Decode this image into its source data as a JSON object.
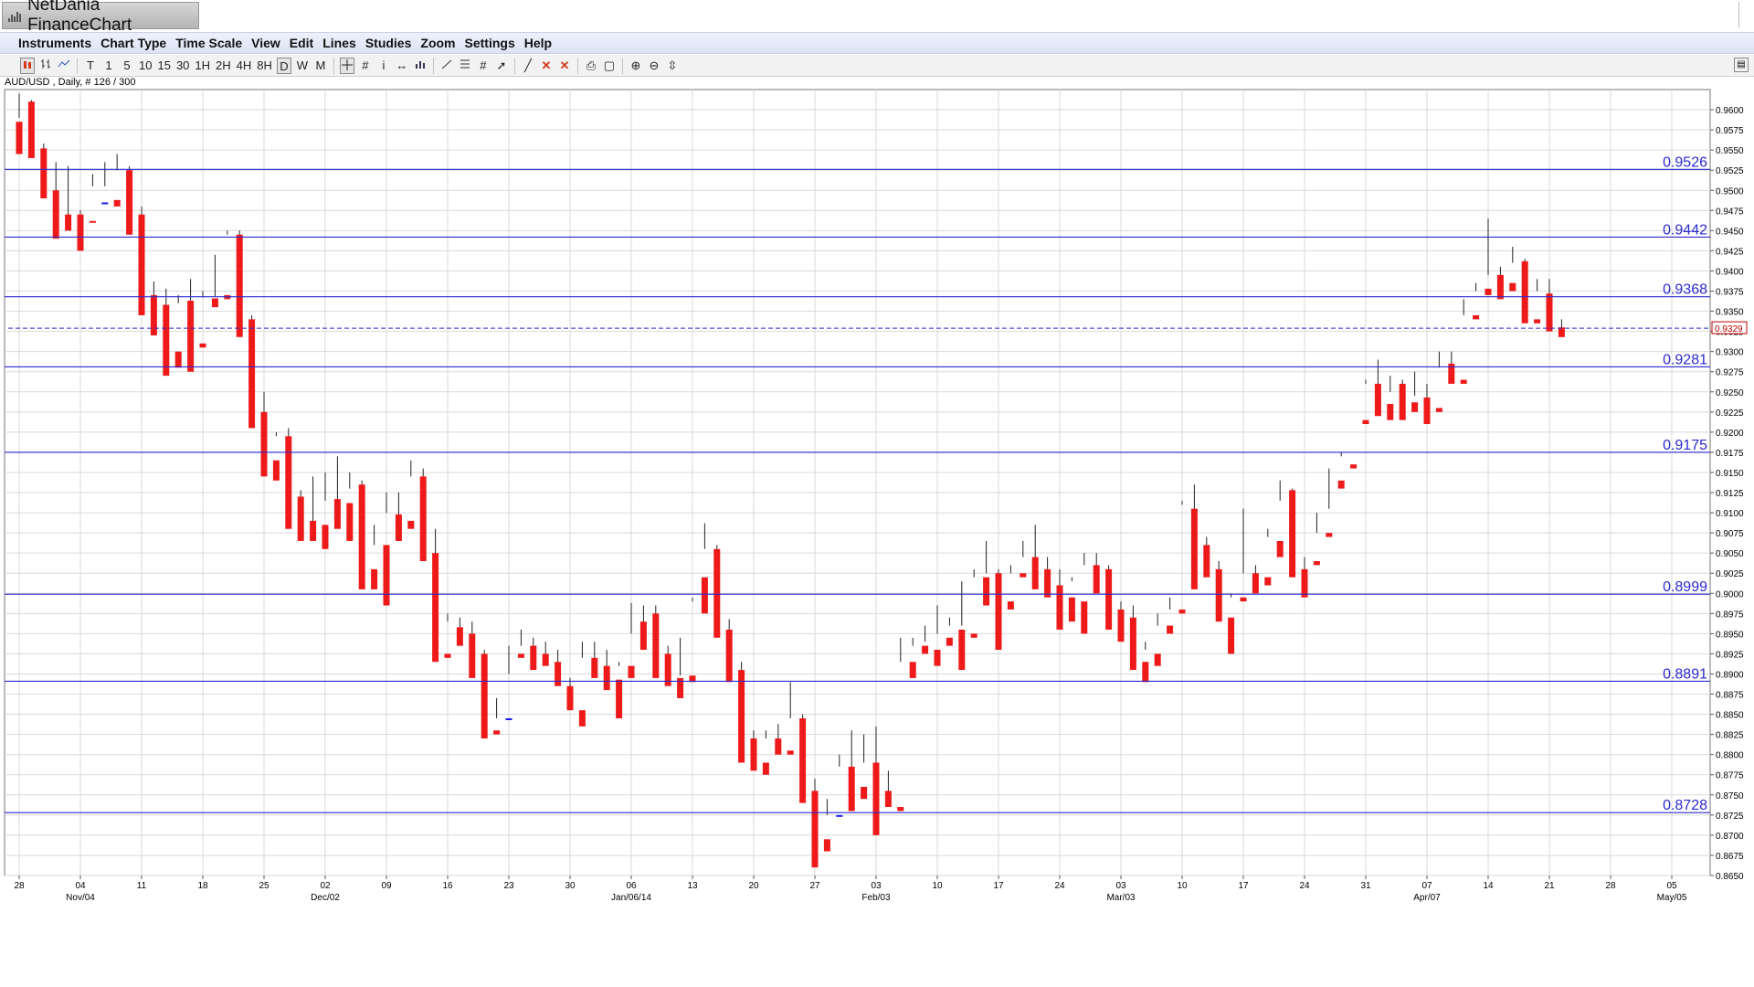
{
  "app": {
    "title": "NetDania FinanceChart"
  },
  "menu": [
    "Instruments",
    "Chart Type",
    "Time Scale",
    "View",
    "Edit",
    "Lines",
    "Studies",
    "Zoom",
    "Settings",
    "Help"
  ],
  "toolbar": {
    "chart_type_icons": [
      "candle-chart-icon",
      "bar-chart-icon",
      "line-chart-icon"
    ],
    "timescales": [
      "T",
      "1",
      "5",
      "10",
      "15",
      "30",
      "1H",
      "2H",
      "4H",
      "8H",
      "D",
      "W",
      "M"
    ],
    "active_timescale": "D",
    "tool_icons": [
      "crosshair-icon",
      "grid-icon",
      "info-icon",
      "pan-icon",
      "volume-icon",
      "trendline-icon",
      "fibonacci-icon",
      "channel-icon",
      "arrow-icon",
      "draw-line-icon",
      "delete-icon",
      "delete-all-icon",
      "print-icon",
      "print-preview-icon",
      "zoom-in-icon",
      "zoom-out-icon",
      "zoom-fit-icon"
    ]
  },
  "symbol_info": "AUD/USD , Daily, # 126 / 300",
  "colors": {
    "up": "#1a1aee",
    "down": "#ee1a1a",
    "line": "#2a2ad0",
    "grid": "#d9d9d9",
    "price_label": "#c00000"
  },
  "chart_data": {
    "type": "candlestick",
    "symbol": "AUD/USD",
    "interval": "Daily",
    "ylim": [
      0.865,
      0.9625
    ],
    "y_ticks": [
      "0.8650",
      "0.8675",
      "0.8700",
      "0.8725",
      "0.8750",
      "0.8775",
      "0.8800",
      "0.8825",
      "0.8850",
      "0.8875",
      "0.8900",
      "0.8925",
      "0.8950",
      "0.8975",
      "0.9000",
      "0.9025",
      "0.9050",
      "0.9075",
      "0.9100",
      "0.9125",
      "0.9150",
      "0.9175",
      "0.9200",
      "0.9225",
      "0.9250",
      "0.9275",
      "0.9300",
      "0.9325",
      "0.9350",
      "0.9375",
      "0.9400",
      "0.9425",
      "0.9450",
      "0.9475",
      "0.9500",
      "0.9525",
      "0.9550",
      "0.9575",
      "0.9600"
    ],
    "x_ticks": [
      {
        "day": "28",
        "month": ""
      },
      {
        "day": "04",
        "month": "Nov/04"
      },
      {
        "day": "11",
        "month": ""
      },
      {
        "day": "18",
        "month": ""
      },
      {
        "day": "25",
        "month": ""
      },
      {
        "day": "02",
        "month": "Dec/02"
      },
      {
        "day": "09",
        "month": ""
      },
      {
        "day": "16",
        "month": ""
      },
      {
        "day": "23",
        "month": ""
      },
      {
        "day": "30",
        "month": ""
      },
      {
        "day": "06",
        "month": "Jan/06/14"
      },
      {
        "day": "13",
        "month": ""
      },
      {
        "day": "20",
        "month": ""
      },
      {
        "day": "27",
        "month": ""
      },
      {
        "day": "03",
        "month": "Feb/03"
      },
      {
        "day": "10",
        "month": ""
      },
      {
        "day": "17",
        "month": ""
      },
      {
        "day": "24",
        "month": ""
      },
      {
        "day": "03",
        "month": "Mar/03"
      },
      {
        "day": "10",
        "month": ""
      },
      {
        "day": "17",
        "month": ""
      },
      {
        "day": "24",
        "month": ""
      },
      {
        "day": "31",
        "month": ""
      },
      {
        "day": "07",
        "month": "Apr/07"
      },
      {
        "day": "14",
        "month": ""
      },
      {
        "day": "21",
        "month": ""
      },
      {
        "day": "28",
        "month": ""
      },
      {
        "day": "05",
        "month": "May/05"
      }
    ],
    "horizontal_lines": [
      "0.9526",
      "0.9442",
      "0.9368",
      "0.9281",
      "0.9175",
      "0.8999",
      "0.8891",
      "0.8728"
    ],
    "last_price": "0.9329",
    "candles": [
      [
        0.9585,
        0.962,
        0.959,
        0.9545
      ],
      [
        0.961,
        0.9612,
        0.9555,
        0.954
      ],
      [
        0.9552,
        0.9558,
        0.9495,
        0.949
      ],
      [
        0.95,
        0.9535,
        0.948,
        0.944
      ],
      [
        0.947,
        0.953,
        0.9467,
        0.945
      ],
      [
        0.947,
        0.9475,
        0.9447,
        0.9425
      ],
      [
        0.9462,
        0.952,
        0.9505,
        0.946
      ],
      [
        0.9485,
        0.9535,
        0.9505,
        0.9485
      ],
      [
        0.9488,
        0.9545,
        0.9525,
        0.948
      ],
      [
        0.9525,
        0.953,
        0.947,
        0.9445
      ],
      [
        0.947,
        0.948,
        0.936,
        0.9345
      ],
      [
        0.937,
        0.9387,
        0.9365,
        0.932
      ],
      [
        0.9358,
        0.9378,
        0.93,
        0.927
      ],
      [
        0.93,
        0.937,
        0.936,
        0.928
      ],
      [
        0.9363,
        0.939,
        0.9305,
        0.9275
      ],
      [
        0.931,
        0.9375,
        0.9367,
        0.9305
      ],
      [
        0.9366,
        0.942,
        0.9368,
        0.9355
      ],
      [
        0.937,
        0.945,
        0.9445,
        0.9365
      ],
      [
        0.9445,
        0.945,
        0.934,
        0.9318
      ],
      [
        0.934,
        0.9345,
        0.9225,
        0.9205
      ],
      [
        0.9225,
        0.925,
        0.9165,
        0.9145
      ],
      [
        0.9165,
        0.92,
        0.9195,
        0.914
      ],
      [
        0.9195,
        0.9205,
        0.9115,
        0.908
      ],
      [
        0.912,
        0.9128,
        0.9085,
        0.9065
      ],
      [
        0.909,
        0.9145,
        0.9085,
        0.9065
      ],
      [
        0.9085,
        0.915,
        0.9115,
        0.9055
      ],
      [
        0.9117,
        0.917,
        0.9115,
        0.908
      ],
      [
        0.9112,
        0.915,
        0.913,
        0.9065
      ],
      [
        0.9135,
        0.914,
        0.903,
        0.9005
      ],
      [
        0.903,
        0.9085,
        0.906,
        0.9005
      ],
      [
        0.906,
        0.9125,
        0.91,
        0.8985
      ],
      [
        0.9098,
        0.9125,
        0.909,
        0.9065
      ],
      [
        0.909,
        0.9165,
        0.9145,
        0.908
      ],
      [
        0.9145,
        0.9155,
        0.905,
        0.904
      ],
      [
        0.905,
        0.908,
        0.892,
        0.8915
      ],
      [
        0.8925,
        0.8975,
        0.8965,
        0.892
      ],
      [
        0.8958,
        0.897,
        0.8948,
        0.8935
      ],
      [
        0.895,
        0.8965,
        0.8925,
        0.8895
      ],
      [
        0.8925,
        0.893,
        0.883,
        0.882
      ],
      [
        0.883,
        0.887,
        0.8845,
        0.8825
      ],
      [
        0.8845,
        0.8935,
        0.89,
        0.8845
      ],
      [
        0.8925,
        0.8955,
        0.8935,
        0.892
      ],
      [
        0.8935,
        0.8945,
        0.8925,
        0.8905
      ],
      [
        0.8925,
        0.894,
        0.8915,
        0.891
      ],
      [
        0.8915,
        0.893,
        0.8885,
        0.8885
      ],
      [
        0.8885,
        0.8895,
        0.8865,
        0.8855
      ],
      [
        0.8855,
        0.894,
        0.892,
        0.8835
      ],
      [
        0.892,
        0.894,
        0.891,
        0.8895
      ],
      [
        0.891,
        0.893,
        0.8895,
        0.888
      ],
      [
        0.8893,
        0.8915,
        0.891,
        0.8845
      ],
      [
        0.891,
        0.8988,
        0.895,
        0.8895
      ],
      [
        0.8965,
        0.8985,
        0.8965,
        0.893
      ],
      [
        0.8975,
        0.8985,
        0.8925,
        0.8895
      ],
      [
        0.8925,
        0.8935,
        0.89,
        0.8885
      ],
      [
        0.8895,
        0.8945,
        0.8898,
        0.887
      ],
      [
        0.8898,
        0.899,
        0.8995,
        0.889
      ],
      [
        0.902,
        0.9087,
        0.9055,
        0.8975
      ],
      [
        0.9055,
        0.906,
        0.8955,
        0.8945
      ],
      [
        0.8955,
        0.8968,
        0.8905,
        0.889
      ],
      [
        0.8905,
        0.8915,
        0.882,
        0.879
      ],
      [
        0.882,
        0.883,
        0.879,
        0.878
      ],
      [
        0.879,
        0.883,
        0.882,
        0.8775
      ],
      [
        0.882,
        0.8838,
        0.8818,
        0.88
      ],
      [
        0.8805,
        0.889,
        0.8845,
        0.88
      ],
      [
        0.8845,
        0.885,
        0.876,
        0.874
      ],
      [
        0.8755,
        0.877,
        0.8695,
        0.866
      ],
      [
        0.8695,
        0.8745,
        0.8725,
        0.868
      ],
      [
        0.8725,
        0.88,
        0.8785,
        0.8725
      ],
      [
        0.8785,
        0.883,
        0.8745,
        0.873
      ],
      [
        0.876,
        0.8825,
        0.879,
        0.8745
      ],
      [
        0.879,
        0.8835,
        0.875,
        0.87
      ],
      [
        0.8755,
        0.878,
        0.875,
        0.8735
      ],
      [
        0.8735,
        0.8945,
        0.8915,
        0.873
      ],
      [
        0.8915,
        0.8945,
        0.8935,
        0.8895
      ],
      [
        0.8935,
        0.896,
        0.894,
        0.8925
      ],
      [
        0.893,
        0.8985,
        0.895,
        0.891
      ],
      [
        0.8945,
        0.897,
        0.896,
        0.8935
      ],
      [
        0.8955,
        0.9015,
        0.896,
        0.8905
      ],
      [
        0.895,
        0.903,
        0.902,
        0.8945
      ],
      [
        0.902,
        0.9065,
        0.9025,
        0.8985
      ],
      [
        0.9025,
        0.903,
        0.899,
        0.893
      ],
      [
        0.899,
        0.9035,
        0.9025,
        0.898
      ],
      [
        0.9025,
        0.9065,
        0.9045,
        0.902
      ],
      [
        0.9045,
        0.9085,
        0.903,
        0.9005
      ],
      [
        0.903,
        0.9045,
        0.901,
        0.8995
      ],
      [
        0.901,
        0.903,
        0.9005,
        0.8955
      ],
      [
        0.8995,
        0.902,
        0.9015,
        0.8965
      ],
      [
        0.899,
        0.905,
        0.9035,
        0.895
      ],
      [
        0.9035,
        0.905,
        0.903,
        0.9
      ],
      [
        0.903,
        0.9035,
        0.898,
        0.8955
      ],
      [
        0.898,
        0.899,
        0.897,
        0.894
      ],
      [
        0.897,
        0.8985,
        0.893,
        0.8905
      ],
      [
        0.8915,
        0.894,
        0.893,
        0.889
      ],
      [
        0.8925,
        0.8975,
        0.896,
        0.891
      ],
      [
        0.896,
        0.8995,
        0.898,
        0.895
      ],
      [
        0.898,
        0.9115,
        0.911,
        0.8975
      ],
      [
        0.9105,
        0.9135,
        0.906,
        0.9005
      ],
      [
        0.906,
        0.907,
        0.903,
        0.902
      ],
      [
        0.903,
        0.904,
        0.897,
        0.8965
      ],
      [
        0.897,
        0.9,
        0.8995,
        0.8925
      ],
      [
        0.8995,
        0.9105,
        0.9025,
        0.899
      ],
      [
        0.9025,
        0.9035,
        0.902,
        0.9
      ],
      [
        0.902,
        0.908,
        0.907,
        0.901
      ],
      [
        0.9065,
        0.914,
        0.9115,
        0.9045
      ],
      [
        0.9128,
        0.913,
        0.9028,
        0.902
      ],
      [
        0.903,
        0.9045,
        0.902,
        0.8995
      ],
      [
        0.904,
        0.91,
        0.9075,
        0.9035
      ],
      [
        0.9075,
        0.9155,
        0.9105,
        0.907
      ],
      [
        0.914,
        0.9175,
        0.917,
        0.913
      ],
      [
        0.916,
        0.922,
        0.922,
        0.9155
      ],
      [
        0.9215,
        0.9265,
        0.926,
        0.921
      ],
      [
        0.926,
        0.929,
        0.9235,
        0.922
      ],
      [
        0.9235,
        0.927,
        0.925,
        0.9215
      ],
      [
        0.926,
        0.9265,
        0.923,
        0.9215
      ],
      [
        0.9237,
        0.9275,
        0.9245,
        0.9225
      ],
      [
        0.9243,
        0.926,
        0.923,
        0.921
      ],
      [
        0.923,
        0.93,
        0.928,
        0.9225
      ],
      [
        0.9285,
        0.93,
        0.9265,
        0.926
      ],
      [
        0.9265,
        0.9365,
        0.9345,
        0.926
      ],
      [
        0.9345,
        0.9385,
        0.9375,
        0.934
      ],
      [
        0.9378,
        0.9465,
        0.9395,
        0.937
      ],
      [
        0.9395,
        0.9405,
        0.9395,
        0.9365
      ],
      [
        0.9385,
        0.943,
        0.941,
        0.9375
      ],
      [
        0.9412,
        0.9415,
        0.934,
        0.9335
      ],
      [
        0.934,
        0.939,
        0.9375,
        0.9335
      ],
      [
        0.9372,
        0.939,
        0.933,
        0.9325
      ],
      [
        0.933,
        0.934,
        0.9329,
        0.9318
      ]
    ]
  }
}
